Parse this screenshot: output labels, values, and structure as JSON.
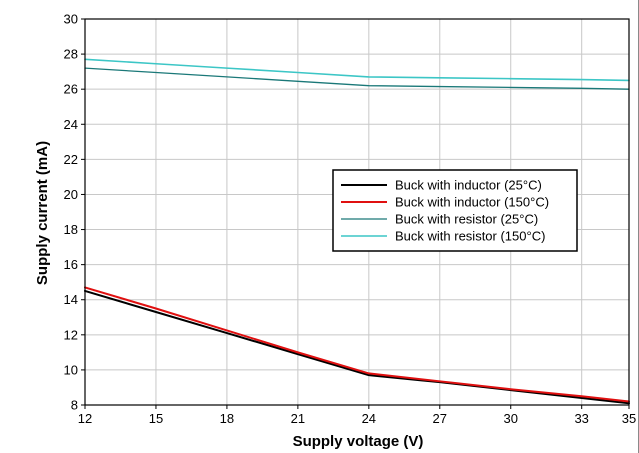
{
  "chart_data": {
    "type": "line",
    "xlabel": "Supply voltage (V)",
    "ylabel": "Supply current (mA)",
    "xlim": [
      12,
      35
    ],
    "ylim": [
      8,
      30
    ],
    "xticks": [
      12,
      15,
      18,
      21,
      24,
      27,
      30,
      33,
      35
    ],
    "yticks": [
      8,
      10,
      12,
      14,
      16,
      18,
      20,
      22,
      24,
      26,
      28,
      30
    ],
    "grid": true,
    "legend_position": "center-right",
    "series": [
      {
        "name": "Buck with inductor (25°C)",
        "color": "#000000",
        "width": 2,
        "x": [
          12,
          15,
          18,
          21,
          24,
          27,
          30,
          33,
          35
        ],
        "y": [
          14.5,
          13.3,
          12.1,
          10.9,
          9.7,
          9.3,
          8.85,
          8.4,
          8.1
        ]
      },
      {
        "name": "Buck with inductor (150°C)",
        "color": "#e01010",
        "width": 2,
        "x": [
          12,
          15,
          18,
          21,
          24,
          27,
          30,
          33,
          35
        ],
        "y": [
          14.7,
          13.5,
          12.25,
          11.0,
          9.8,
          9.35,
          8.9,
          8.5,
          8.2
        ]
      },
      {
        "name": "Buck with resistor (25°C)",
        "color": "#1a7878",
        "width": 1.3,
        "x": [
          12,
          15,
          18,
          21,
          24,
          27,
          30,
          33,
          35
        ],
        "y": [
          27.2,
          26.95,
          26.7,
          26.45,
          26.2,
          26.15,
          26.1,
          26.05,
          26.0
        ]
      },
      {
        "name": "Buck with resistor (150°C)",
        "color": "#3cc6c6",
        "width": 1.6,
        "x": [
          12,
          15,
          18,
          21,
          24,
          27,
          30,
          33,
          35
        ],
        "y": [
          27.7,
          27.45,
          27.2,
          26.95,
          26.7,
          26.65,
          26.6,
          26.55,
          26.5
        ]
      }
    ]
  }
}
